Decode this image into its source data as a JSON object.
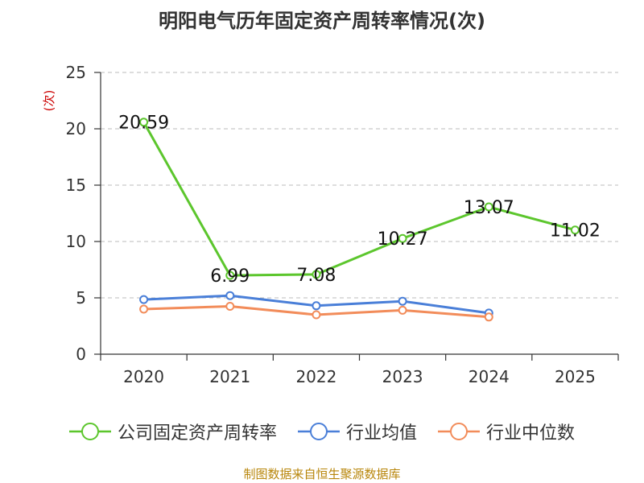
{
  "chart_data": {
    "type": "line",
    "title": "明阳电气历年固定资产周转率情况(次)",
    "ylabel": "(次)",
    "xlabel": "",
    "categories": [
      "2020",
      "2021",
      "2022",
      "2023",
      "2024",
      "2025"
    ],
    "ylim": [
      0,
      25
    ],
    "yticks": [
      0,
      5,
      10,
      15,
      20,
      25
    ],
    "grid": true,
    "legend_position": "bottom",
    "series": [
      {
        "name": "公司固定资产周转率",
        "color": "#5cc62d",
        "values": [
          20.59,
          6.99,
          7.08,
          10.27,
          13.07,
          11.02
        ],
        "labels": [
          "20.59",
          "6.99",
          "7.08",
          "10.27",
          "13.07",
          "11.02"
        ]
      },
      {
        "name": "行业均值",
        "color": "#4a7fd8",
        "values": [
          4.85,
          5.2,
          4.3,
          4.7,
          3.65,
          null
        ]
      },
      {
        "name": "行业中位数",
        "color": "#f28c5a",
        "values": [
          4.0,
          4.25,
          3.5,
          3.9,
          3.3,
          null
        ]
      }
    ]
  },
  "source": "制图数据来自恒生聚源数据库"
}
